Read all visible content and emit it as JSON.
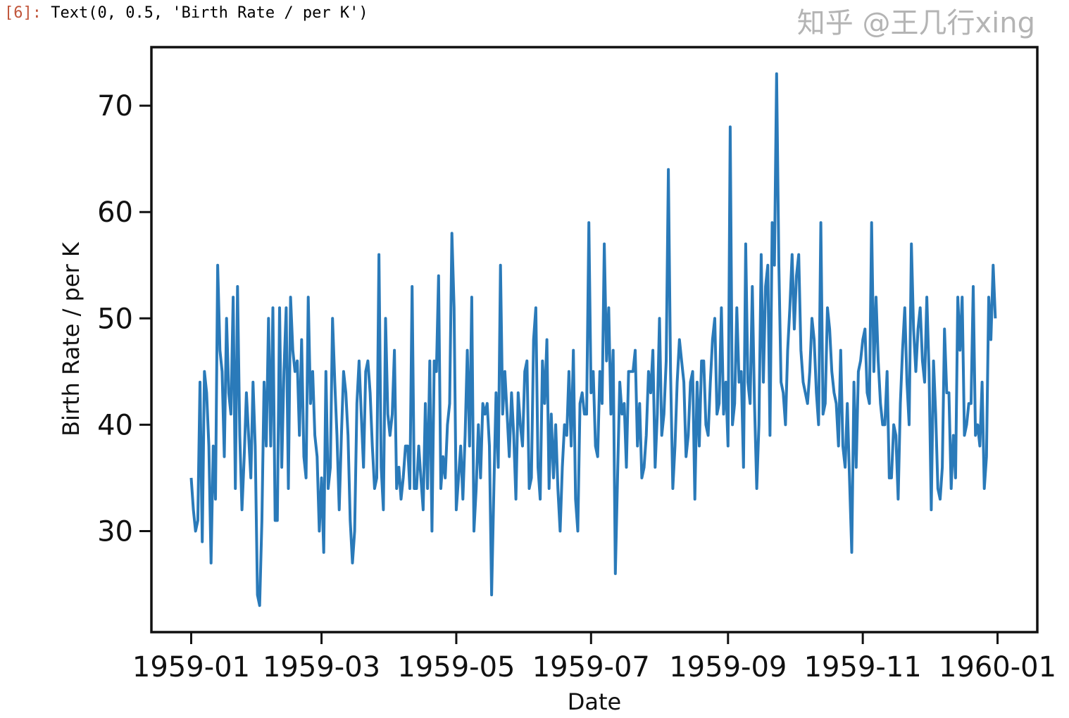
{
  "cell": {
    "prompt": "[6]:",
    "output": "Text(0, 0.5, 'Birth Rate / per K')"
  },
  "watermark": "知乎 @王几行xing",
  "chart_data": {
    "type": "line",
    "title": "",
    "xlabel": "Date",
    "ylabel": "Birth Rate / per K",
    "x_start": "1959-01-01",
    "x_frequency": "daily",
    "xlim": [
      "1958-12-14",
      "1960-01-19"
    ],
    "ylim": [
      20.5,
      75.5
    ],
    "xticks": [
      "1959-01",
      "1959-03",
      "1959-05",
      "1959-07",
      "1959-09",
      "1959-11",
      "1960-01"
    ],
    "yticks": [
      30,
      40,
      50,
      60,
      70
    ],
    "grid": false,
    "line_color": "#2a7ab9",
    "values": [
      35,
      32,
      30,
      31,
      44,
      29,
      45,
      43,
      38,
      27,
      38,
      33,
      55,
      47,
      45,
      37,
      50,
      43,
      41,
      52,
      34,
      53,
      39,
      32,
      37,
      43,
      39,
      35,
      44,
      38,
      24,
      23,
      31,
      44,
      38,
      50,
      38,
      51,
      31,
      31,
      51,
      36,
      45,
      51,
      34,
      52,
      47,
      45,
      46,
      39,
      48,
      37,
      35,
      52,
      42,
      45,
      39,
      37,
      30,
      35,
      28,
      45,
      34,
      36,
      50,
      44,
      39,
      32,
      39,
      45,
      43,
      39,
      31,
      27,
      30,
      42,
      46,
      41,
      36,
      45,
      46,
      43,
      38,
      34,
      35,
      56,
      36,
      32,
      50,
      41,
      39,
      41,
      47,
      34,
      36,
      33,
      35,
      38,
      38,
      34,
      53,
      34,
      34,
      38,
      35,
      32,
      42,
      34,
      46,
      30,
      46,
      45,
      54,
      34,
      37,
      35,
      40,
      42,
      58,
      51,
      32,
      35,
      38,
      33,
      39,
      47,
      38,
      52,
      30,
      34,
      40,
      35,
      42,
      41,
      42,
      38,
      24,
      34,
      43,
      36,
      55,
      41,
      45,
      41,
      37,
      43,
      39,
      33,
      43,
      40,
      38,
      45,
      46,
      34,
      35,
      48,
      51,
      36,
      33,
      46,
      42,
      48,
      34,
      41,
      35,
      40,
      34,
      30,
      36,
      40,
      39,
      45,
      38,
      47,
      33,
      30,
      42,
      43,
      41,
      41,
      59,
      43,
      45,
      38,
      37,
      45,
      42,
      57,
      46,
      51,
      41,
      47,
      26,
      35,
      44,
      41,
      42,
      36,
      45,
      45,
      45,
      47,
      38,
      42,
      35,
      36,
      39,
      45,
      43,
      47,
      36,
      41,
      50,
      39,
      41,
      46,
      64,
      45,
      34,
      38,
      44,
      48,
      46,
      44,
      37,
      39,
      44,
      45,
      33,
      44,
      38,
      46,
      46,
      40,
      39,
      44,
      48,
      50,
      41,
      42,
      51,
      41,
      44,
      38,
      68,
      40,
      42,
      51,
      44,
      45,
      36,
      57,
      44,
      42,
      53,
      42,
      34,
      40,
      56,
      44,
      53,
      55,
      39,
      59,
      55,
      73,
      55,
      44,
      43,
      40,
      47,
      51,
      56,
      49,
      54,
      56,
      47,
      44,
      43,
      42,
      45,
      50,
      48,
      43,
      40,
      59,
      41,
      42,
      51,
      49,
      45,
      43,
      42,
      38,
      47,
      38,
      36,
      42,
      35,
      28,
      44,
      36,
      45,
      46,
      48,
      49,
      43,
      42,
      59,
      45,
      52,
      46,
      42,
      40,
      40,
      45,
      35,
      35,
      40,
      39,
      33,
      42,
      47,
      51,
      44,
      40,
      57,
      49,
      45,
      49,
      51,
      46,
      44,
      52,
      45,
      32,
      46,
      41,
      34,
      33,
      36,
      49,
      43,
      43,
      34,
      39,
      35,
      52,
      47,
      52,
      39,
      40,
      42,
      42,
      53,
      39,
      40,
      38,
      44,
      34,
      37,
      52,
      48,
      55,
      50
    ]
  }
}
